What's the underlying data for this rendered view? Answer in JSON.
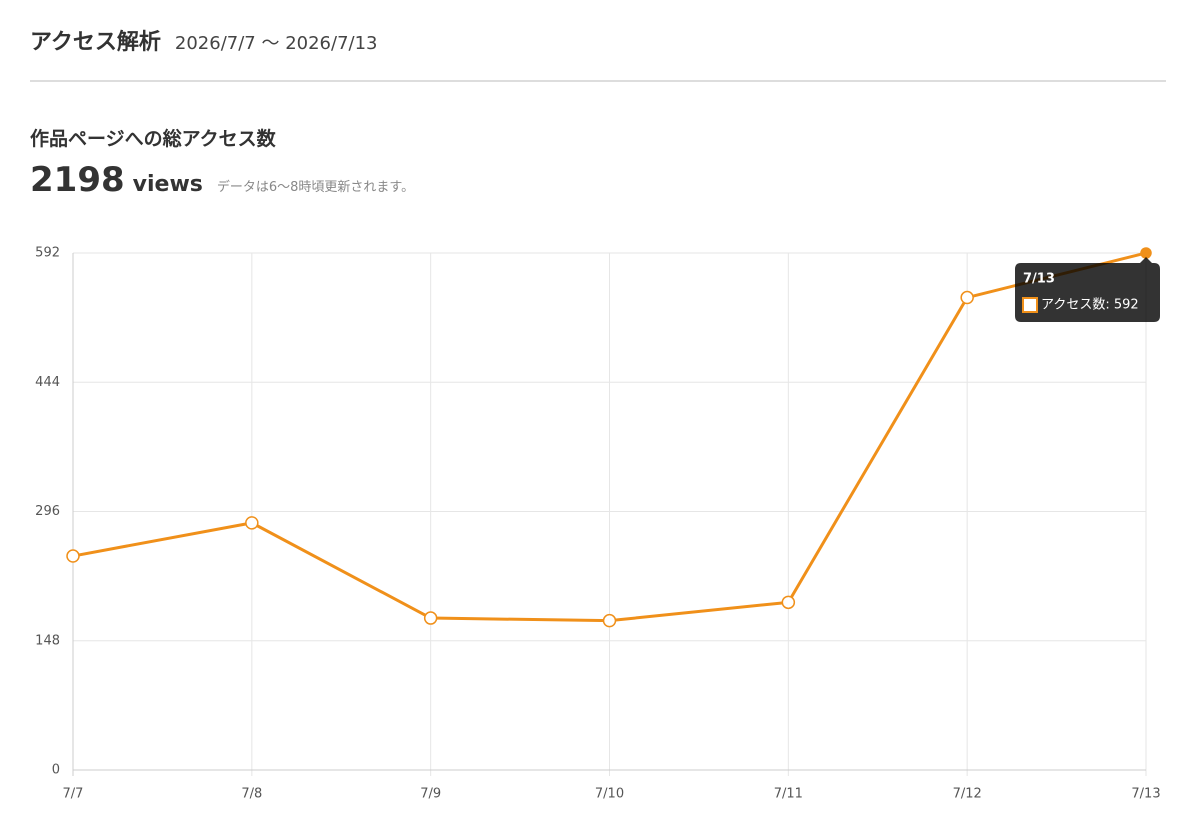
{
  "header": {
    "title": "アクセス解析",
    "period": "2026/7/7 〜 2026/7/13"
  },
  "summary": {
    "title": "作品ページへの総アクセス数",
    "total": 2198,
    "unit": "views",
    "note": "データは6〜8時頃更新されます。"
  },
  "chart_data": {
    "type": "line",
    "categories": [
      "7/7",
      "7/8",
      "7/9",
      "7/10",
      "7/11",
      "7/12",
      "7/13"
    ],
    "series": [
      {
        "name": "アクセス数",
        "color": "#f0901a",
        "values": [
          245,
          283,
          174,
          171,
          192,
          541,
          592
        ]
      }
    ],
    "ylim": [
      0,
      592
    ],
    "yticks": [
      0,
      148,
      296,
      444,
      592
    ],
    "grid": true,
    "tooltip": {
      "label": "アクセス数: 592"
    }
  }
}
